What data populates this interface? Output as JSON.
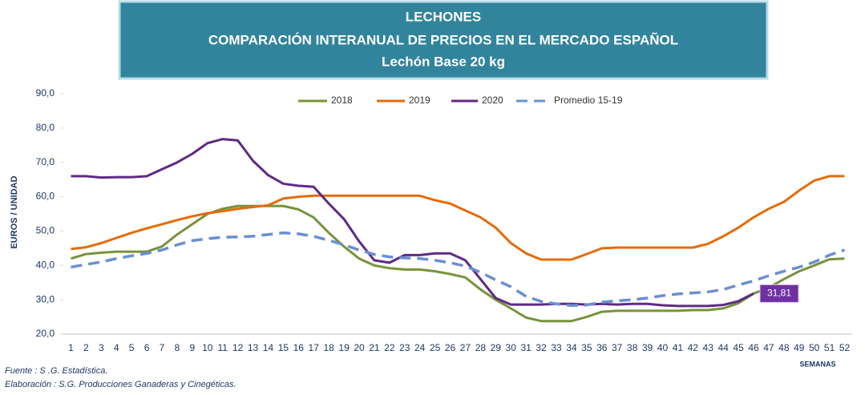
{
  "chart_data": {
    "type": "line",
    "title": "LECHONES",
    "subtitle": "COMPARACIÓN INTERANUAL DE PRECIOS EN EL MERCADO ESPAÑOL",
    "subtitle2": "Lechón Base 20 kg",
    "y_label": "EUROS / UNIDAD",
    "x_label": "SEMANAS",
    "source": "Fuente :  S .G. Estadística.",
    "credit": "Elaboración : S.G. Producciones Ganaderas y Cinegéticas.",
    "categories": [
      "1",
      "2",
      "3",
      "4",
      "5",
      "6",
      "7",
      "8",
      "9",
      "10",
      "11",
      "12",
      "13",
      "14",
      "15",
      "16",
      "17",
      "18",
      "19",
      "20",
      "21",
      "22",
      "23",
      "24",
      "25",
      "26",
      "27",
      "28",
      "29",
      "30",
      "31",
      "32",
      "33",
      "34",
      "35",
      "36",
      "37",
      "38",
      "39",
      "40",
      "41",
      "42",
      "43",
      "44",
      "45",
      "46",
      "47",
      "48",
      "49",
      "50",
      "51",
      "52"
    ],
    "ylim": [
      20,
      90
    ],
    "yticks": [
      {
        "value": 20,
        "label": "20,0"
      },
      {
        "value": 30,
        "label": "30,0"
      },
      {
        "value": 40,
        "label": "40,0"
      },
      {
        "value": 50,
        "label": "50,0"
      },
      {
        "value": 60,
        "label": "60,0"
      },
      {
        "value": 70,
        "label": "70,0"
      },
      {
        "value": 80,
        "label": "80,0"
      },
      {
        "value": 90,
        "label": "90,0"
      }
    ],
    "grid": false,
    "legend": "top",
    "series": [
      {
        "name": "2018",
        "color": "#77933c",
        "dash": false,
        "values": [
          42,
          43.3,
          43.7,
          44,
          44,
          44,
          45.5,
          49,
          52,
          55,
          56.5,
          57.3,
          57.3,
          57.3,
          57.3,
          56.3,
          54,
          49.5,
          45.5,
          42,
          40,
          39.2,
          38.8,
          38.8,
          38.3,
          37.5,
          36.5,
          33,
          30,
          27.5,
          24.8,
          23.8,
          23.8,
          23.8,
          25,
          26.5,
          26.8,
          26.8,
          26.8,
          26.8,
          26.8,
          27,
          27,
          27.5,
          29,
          31.8,
          33.5,
          36,
          38.3,
          40,
          41.8,
          42
        ]
      },
      {
        "name": "2019",
        "color": "#e46c0a",
        "dash": false,
        "values": [
          44.8,
          45.3,
          46.5,
          48,
          49.5,
          50.8,
          52,
          53.2,
          54.3,
          55.2,
          55.8,
          56.5,
          57,
          57.5,
          59.5,
          60,
          60.3,
          60.3,
          60.3,
          60.3,
          60.3,
          60.3,
          60.3,
          60.3,
          59,
          58,
          56,
          54,
          51,
          46.5,
          43.5,
          41.7,
          41.7,
          41.7,
          43.3,
          45,
          45.2,
          45.2,
          45.2,
          45.2,
          45.2,
          45.2,
          46.3,
          48.5,
          51,
          54,
          56.5,
          58.5,
          61.8,
          64.7,
          66,
          66
        ]
      },
      {
        "name": "2020",
        "color": "#5f2a84",
        "dash": false,
        "values": [
          66,
          66,
          65.6,
          65.7,
          65.7,
          66,
          68,
          70,
          72.5,
          75.6,
          76.8,
          76.4,
          70.5,
          66.3,
          63.8,
          63.2,
          62.9,
          58,
          53.5,
          47,
          41.5,
          40.8,
          43,
          43,
          43.5,
          43.5,
          41.5,
          36,
          30.5,
          28.6,
          28.6,
          28.6,
          28.8,
          28.8,
          28.6,
          28.8,
          28.6,
          28.8,
          28.8,
          28.4,
          28.2,
          28.2,
          28.2,
          28.5,
          29.6,
          31.81,
          null,
          null,
          null,
          null,
          null,
          null
        ],
        "value_labels": [
          null,
          null,
          null,
          null,
          null,
          null,
          null,
          null,
          null,
          null,
          null,
          null,
          null,
          null,
          null,
          null,
          null,
          null,
          null,
          null,
          null,
          null,
          null,
          null,
          null,
          null,
          null,
          null,
          null,
          null,
          null,
          null,
          null,
          null,
          null,
          null,
          null,
          null,
          null,
          null,
          null,
          null,
          null,
          null,
          null,
          "31,81",
          null,
          null,
          null,
          null,
          null,
          null
        ]
      },
      {
        "name": "Promedio 15-19",
        "color": "#6b8fd0",
        "dash": true,
        "values": [
          39.5,
          40.3,
          41,
          42,
          42.8,
          43.5,
          44.5,
          46,
          47.2,
          47.8,
          48.2,
          48.3,
          48.5,
          49,
          49.5,
          49.2,
          48.5,
          47.3,
          46,
          44.5,
          43.2,
          42.5,
          42.2,
          42,
          41.5,
          40.8,
          39.8,
          38,
          35.8,
          33.8,
          31,
          29.5,
          28.8,
          28.3,
          28.5,
          29.3,
          29.7,
          30,
          30.5,
          31.2,
          31.7,
          32,
          32.3,
          33,
          34.3,
          35.5,
          37,
          38.3,
          39.5,
          41,
          43,
          44.5
        ]
      }
    ]
  }
}
